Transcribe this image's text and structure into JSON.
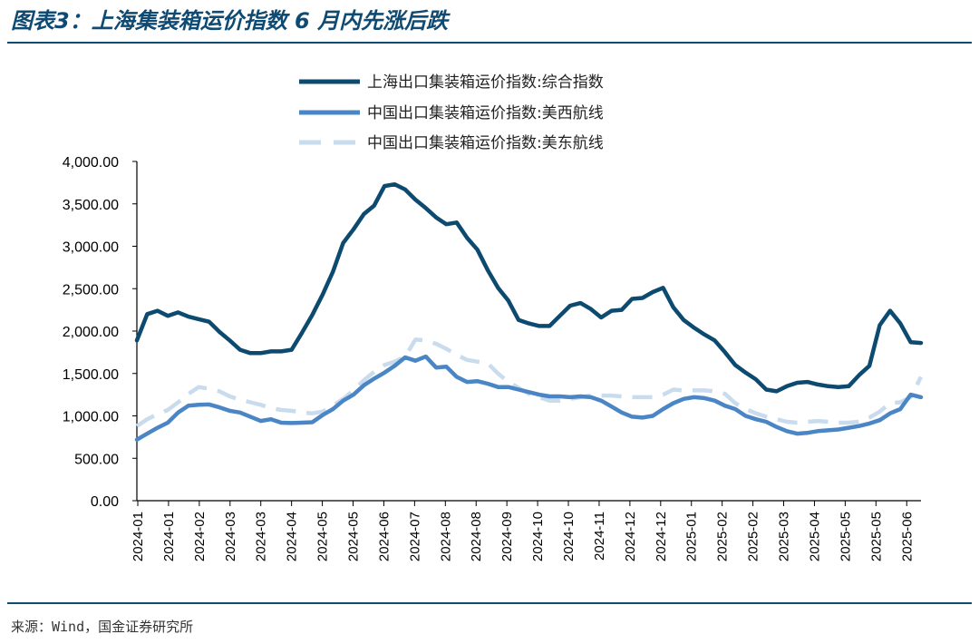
{
  "header": {
    "title": "图表3：上海集装箱运价指数 6 月内先涨后跌"
  },
  "footer": {
    "source": "来源：Wind，国金证券研究所"
  },
  "colors": {
    "rule": "#0f4a72"
  },
  "chart_data": {
    "type": "line",
    "ylim": [
      0,
      4000
    ],
    "y_ticks": [
      "0.00",
      "500.00",
      "1,000.00",
      "1,500.00",
      "2,000.00",
      "2,500.00",
      "3,000.00",
      "3,500.00",
      "4,000.00"
    ],
    "x_tick_labels": [
      "2024-01",
      "2024-01",
      "2024-02",
      "2024-03",
      "2024-03",
      "2024-04",
      "2024-05",
      "2024-05",
      "2024-06",
      "2024-07",
      "2024-08",
      "2024-08",
      "2024-09",
      "2024-10",
      "2024-10",
      "2024-11",
      "2024-12",
      "2024-12",
      "2025-01",
      "2025-02",
      "2025-02",
      "2025-03",
      "2025-04",
      "2025-05",
      "2025-05",
      "2025-06"
    ],
    "legend_position": "top",
    "series": [
      {
        "name": "上海出口集装箱运价指数:综合指数",
        "color": "#0d4a70",
        "style": "solid",
        "values": [
          1890,
          2200,
          2240,
          2180,
          2220,
          2170,
          2140,
          2110,
          1990,
          1890,
          1780,
          1740,
          1740,
          1760,
          1760,
          1780,
          1980,
          2190,
          2430,
          2700,
          3040,
          3200,
          3380,
          3480,
          3710,
          3730,
          3670,
          3550,
          3450,
          3340,
          3260,
          3280,
          3100,
          2960,
          2720,
          2510,
          2360,
          2130,
          2090,
          2060,
          2060,
          2180,
          2300,
          2330,
          2260,
          2160,
          2240,
          2250,
          2380,
          2390,
          2460,
          2510,
          2280,
          2130,
          2040,
          1960,
          1890,
          1750,
          1600,
          1510,
          1430,
          1310,
          1290,
          1350,
          1390,
          1400,
          1370,
          1350,
          1340,
          1350,
          1480,
          1590,
          2070,
          2240,
          2090,
          1870,
          1860
        ]
      },
      {
        "name": "中国出口集装箱运价指数:美西航线",
        "color": "#4a86c5",
        "style": "solid",
        "values": [
          720,
          790,
          860,
          920,
          1040,
          1120,
          1130,
          1135,
          1100,
          1060,
          1040,
          990,
          940,
          960,
          920,
          915,
          920,
          925,
          1010,
          1080,
          1180,
          1250,
          1360,
          1440,
          1510,
          1590,
          1690,
          1650,
          1700,
          1570,
          1580,
          1460,
          1400,
          1410,
          1380,
          1340,
          1340,
          1310,
          1280,
          1250,
          1230,
          1230,
          1220,
          1230,
          1220,
          1180,
          1110,
          1040,
          990,
          980,
          1000,
          1080,
          1150,
          1200,
          1220,
          1210,
          1180,
          1120,
          1080,
          1000,
          960,
          930,
          870,
          820,
          790,
          800,
          820,
          830,
          840,
          860,
          880,
          910,
          950,
          1030,
          1080,
          1250,
          1220
        ]
      },
      {
        "name": "中国出口集装箱运价指数:美东航线",
        "color": "#c8dcee",
        "style": "dashed",
        "values": [
          880,
          960,
          1020,
          1070,
          1160,
          1260,
          1340,
          1320,
          1290,
          1230,
          1190,
          1160,
          1130,
          1090,
          1070,
          1060,
          1040,
          1030,
          1050,
          1120,
          1200,
          1300,
          1420,
          1520,
          1600,
          1640,
          1700,
          1900,
          1890,
          1850,
          1790,
          1720,
          1660,
          1640,
          1620,
          1500,
          1400,
          1330,
          1260,
          1220,
          1180,
          1180,
          1200,
          1220,
          1240,
          1240,
          1240,
          1230,
          1220,
          1220,
          1220,
          1250,
          1310,
          1300,
          1300,
          1300,
          1290,
          1260,
          1150,
          1080,
          1030,
          990,
          960,
          930,
          920,
          930,
          940,
          930,
          920,
          920,
          930,
          980,
          1050,
          1150,
          1160,
          1220,
          1460
        ]
      }
    ]
  }
}
